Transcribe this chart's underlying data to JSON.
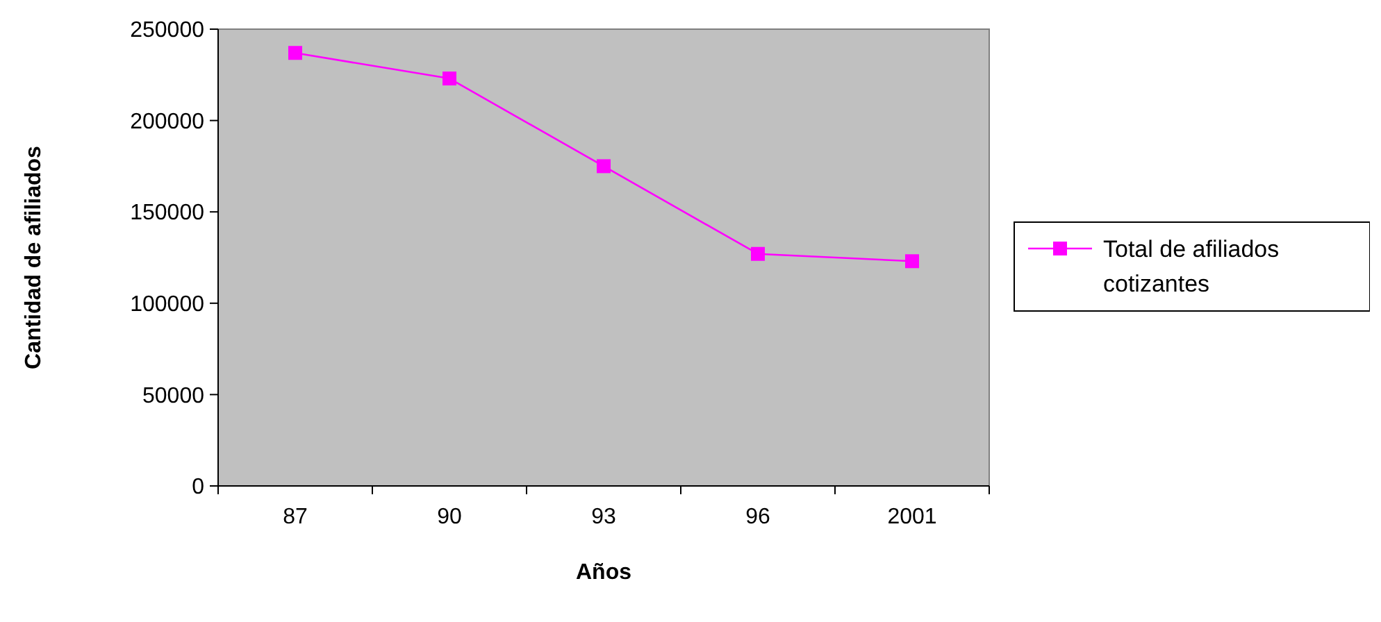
{
  "chart_data": {
    "type": "line",
    "xlabel": "Años",
    "ylabel": "Cantidad de afiliados",
    "categories": [
      "87",
      "90",
      "93",
      "96",
      "2001"
    ],
    "series": [
      {
        "name": "Total de afiliados cotizantes",
        "color": "#ff00ff",
        "values": [
          237000,
          223000,
          175000,
          127000,
          123000
        ]
      }
    ],
    "ylim": [
      0,
      250000
    ],
    "yticks": [
      0,
      50000,
      100000,
      150000,
      200000,
      250000
    ],
    "grid": false,
    "legend": "right",
    "marker": "square"
  }
}
